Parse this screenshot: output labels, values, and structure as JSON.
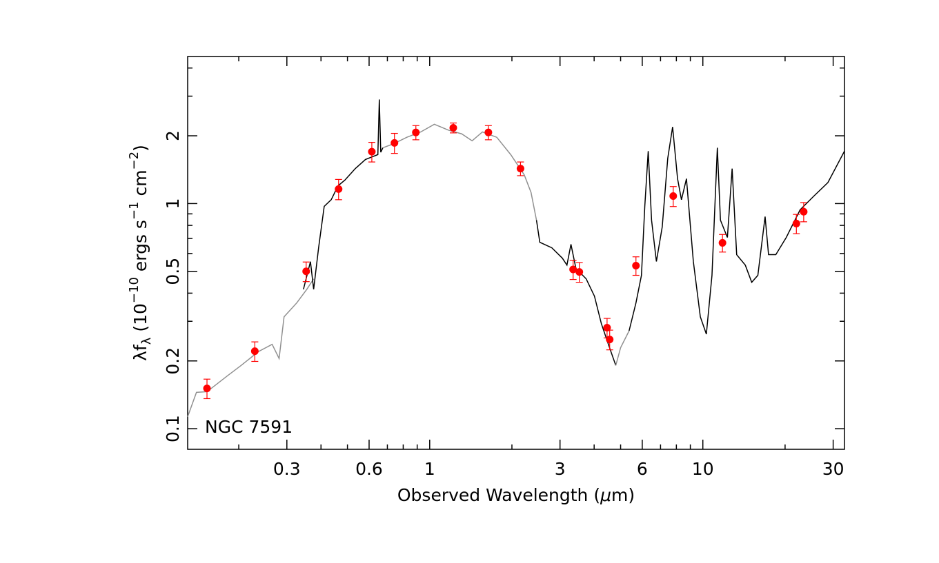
{
  "chart_data": {
    "type": "scatter",
    "xlabel": [
      {
        "text": "Observed Wavelength ("
      },
      {
        "text": "μ",
        "italic": true
      },
      {
        "text": "m)"
      }
    ],
    "ylabel": [
      {
        "text": "λf"
      },
      {
        "text": "λ",
        "sub": true
      },
      {
        "text": " (10"
      },
      {
        "text": "−10",
        "sup": true
      },
      {
        "text": " ergs s"
      },
      {
        "text": "−1",
        "sup": true
      },
      {
        "text": " cm"
      },
      {
        "text": "−2",
        "sup": true
      },
      {
        "text": ")"
      }
    ],
    "annotation": "NGC 7591",
    "xscale": "log",
    "yscale": "log",
    "xlim": [
      0.13,
      33
    ],
    "ylim": [
      0.081,
      4.5
    ],
    "xticks": [
      0.3,
      0.6,
      1,
      3,
      6,
      10,
      30
    ],
    "xminorticks": [
      0.2,
      0.4,
      0.5,
      0.7,
      0.8,
      0.9,
      2,
      4,
      5,
      7,
      8,
      9,
      20
    ],
    "yticks": [
      0.1,
      0.2,
      0.5,
      1,
      2
    ],
    "yminorticks": [
      0.3,
      0.4,
      0.6,
      0.7,
      0.8,
      0.9,
      3,
      4
    ],
    "series": [
      {
        "type": "line",
        "color": "#909090",
        "x": [
          0.13,
          0.14,
          0.153,
          0.182,
          0.204,
          0.236,
          0.265,
          0.281,
          0.293,
          0.326,
          0.355,
          0.376
        ],
        "values": [
          0.113,
          0.145,
          0.146,
          0.172,
          0.191,
          0.22,
          0.237,
          0.205,
          0.314,
          0.362,
          0.416,
          0.463
        ]
      },
      {
        "type": "line",
        "color": "#000000",
        "x": [
          0.345,
          0.366,
          0.376,
          0.392,
          0.411,
          0.436,
          0.462,
          0.489,
          0.534,
          0.582,
          0.646,
          0.654,
          0.662,
          0.674
        ],
        "values": [
          0.416,
          0.552,
          0.416,
          0.636,
          0.972,
          1.04,
          1.2,
          1.27,
          1.43,
          1.57,
          1.65,
          2.9,
          1.69,
          1.77
        ]
      },
      {
        "type": "line",
        "color": "#909090",
        "x": [
          0.674,
          0.735,
          0.825,
          0.927,
          1.04,
          1.17,
          1.31,
          1.43,
          1.56,
          1.76,
          1.98,
          2.22,
          2.35,
          2.46
        ],
        "values": [
          1.77,
          1.84,
          1.97,
          2.08,
          2.25,
          2.12,
          2.04,
          1.9,
          2.08,
          1.97,
          1.65,
          1.34,
          1.12,
          0.844
        ]
      },
      {
        "type": "line",
        "color": "#000000",
        "x": [
          2.46,
          2.53,
          2.8,
          3.06,
          3.18,
          3.29,
          3.43,
          3.74,
          4.01,
          4.25,
          4.51,
          4.8
        ],
        "values": [
          0.844,
          0.673,
          0.636,
          0.572,
          0.533,
          0.659,
          0.515,
          0.463,
          0.388,
          0.293,
          0.237,
          0.191
        ]
      },
      {
        "type": "line",
        "color": "#909090",
        "x": [
          4.8,
          5.0,
          5.37
        ],
        "values": [
          0.191,
          0.229,
          0.272
        ]
      },
      {
        "type": "line",
        "color": "#000000",
        "x": [
          5.37,
          5.69,
          5.96,
          6.13,
          6.31,
          6.49,
          6.76,
          7.1,
          7.44,
          7.75,
          8.08,
          8.35,
          8.71,
          9.23,
          9.79,
          10.3,
          10.8,
          11.3,
          11.6,
          12.3,
          12.8,
          13.3,
          14.3,
          15.1,
          15.9,
          16.9,
          17.4,
          18.5,
          20.2,
          22.7,
          25.5,
          28.7,
          33
        ],
        "values": [
          0.272,
          0.362,
          0.48,
          0.972,
          1.71,
          0.844,
          0.553,
          0.787,
          1.59,
          2.19,
          1.29,
          1.04,
          1.29,
          0.553,
          0.314,
          0.263,
          0.48,
          1.77,
          0.844,
          0.707,
          1.43,
          0.593,
          0.533,
          0.447,
          0.48,
          0.875,
          0.593,
          0.593,
          0.707,
          0.938,
          1.08,
          1.24,
          1.71
        ]
      },
      {
        "type": "scatter",
        "color": "#ff0000",
        "x": [
          0.153,
          0.229,
          0.353,
          0.464,
          0.614,
          0.743,
          0.89,
          1.22,
          1.64,
          2.15,
          3.35,
          3.53,
          4.46,
          4.56,
          5.69,
          7.79,
          11.8,
          22.0,
          23.4
        ],
        "values": [
          0.151,
          0.221,
          0.5,
          1.16,
          1.7,
          1.86,
          2.07,
          2.17,
          2.07,
          1.43,
          0.51,
          0.497,
          0.281,
          0.249,
          0.53,
          1.08,
          0.669,
          0.815,
          0.92
        ],
        "errors": [
          0.015,
          0.022,
          0.05,
          0.12,
          0.17,
          0.19,
          0.15,
          0.11,
          0.15,
          0.1,
          0.05,
          0.05,
          0.028,
          0.025,
          0.05,
          0.11,
          0.06,
          0.08,
          0.09
        ]
      }
    ]
  }
}
